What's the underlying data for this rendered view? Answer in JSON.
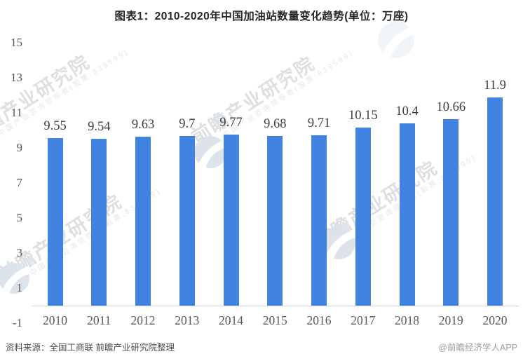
{
  "title": "图表1：2010-2020年中国加油站数量变化趋势(单位：万座)",
  "chart_data": {
    "type": "bar",
    "title": "图表1：2010-2020年中国加油站数量变化趋势(单位：万座)",
    "categories": [
      "2010",
      "2011",
      "2012",
      "2013",
      "2014",
      "2015",
      "2016",
      "2017",
      "2018",
      "2019",
      "2020"
    ],
    "values": [
      9.55,
      9.54,
      9.63,
      9.7,
      9.77,
      9.68,
      9.71,
      10.15,
      10.4,
      10.66,
      11.9
    ],
    "unit": "万座",
    "xlabel": "",
    "ylabel": "",
    "ylim": [
      -1,
      15
    ],
    "yticks": [
      -1,
      1,
      3,
      5,
      7,
      9,
      11,
      13,
      15
    ],
    "grid": false,
    "legend": null,
    "bar_color": "#4183e1"
  },
  "footer": {
    "source": "资料来源：全国工商联 前瞻产业研究院整理",
    "credit": "@前瞻经济学人APP"
  },
  "watermark": {
    "main": "前瞻产业研究院",
    "sub": "中国产业咨询领导者(股票:839599)"
  },
  "colors": {
    "bar": "#4183e1",
    "axis_line": "#d4d7da",
    "tick_label": "#595959",
    "data_label": "#3d3d3d",
    "title": "#262626",
    "source_text": "#4d4d4d",
    "credit_text": "#9e9e9e",
    "watermark_text": "#c2c7cd",
    "globe_fill": "#dde3eb"
  }
}
